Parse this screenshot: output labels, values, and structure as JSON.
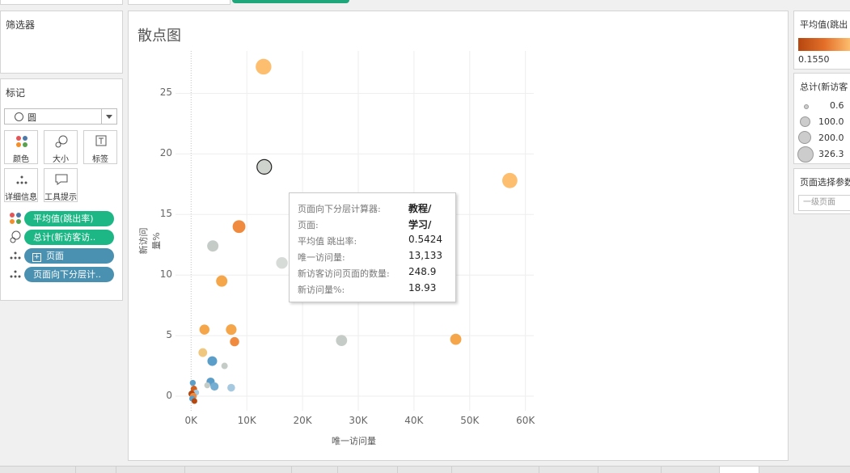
{
  "filters": {
    "title": "筛选器"
  },
  "marks": {
    "title": "标记",
    "mark_type": "圆",
    "buttons": {
      "color": "颜色",
      "size": "大小",
      "label": "标签",
      "detail": "详细信息",
      "tooltip": "工具提示"
    },
    "pills": [
      "平均值(跳出率)",
      "总计(新访客访..",
      "页面",
      "页面向下分层计.."
    ]
  },
  "chart": {
    "title": "散点图"
  },
  "chart_data": {
    "type": "scatter",
    "title": "散点图",
    "xlabel": "唯一访问量",
    "ylabel": "新访问量%",
    "xlim": [
      -2800,
      61500
    ],
    "ylim": [
      -1.2,
      28.5
    ],
    "xticks": [
      "0K",
      "10K",
      "20K",
      "30K",
      "40K",
      "50K",
      "60K"
    ],
    "xtick_values": [
      0,
      10000,
      20000,
      30000,
      40000,
      50000,
      60000
    ],
    "yticks": [
      "0",
      "5",
      "10",
      "15",
      "20",
      "25"
    ],
    "ytick_values": [
      0,
      5,
      10,
      15,
      20,
      25
    ],
    "grid": true,
    "points": [
      {
        "x": 13000,
        "y": 27.2,
        "size": 300,
        "color": "#fdbf6f"
      },
      {
        "x": 57200,
        "y": 17.8,
        "size": 280,
        "color": "#fdbf6f"
      },
      {
        "x": 13133,
        "y": 18.93,
        "size": 248.9,
        "color": "#cfd3ce",
        "selected": true
      },
      {
        "x": 8600,
        "y": 14.0,
        "size": 180,
        "color": "#ef8a3e"
      },
      {
        "x": 3900,
        "y": 12.4,
        "size": 130,
        "color": "#c5ccc8"
      },
      {
        "x": 16300,
        "y": 11.0,
        "size": 140,
        "color": "#d7dbd8"
      },
      {
        "x": 5500,
        "y": 9.5,
        "size": 130,
        "color": "#f5a64a"
      },
      {
        "x": 2400,
        "y": 5.5,
        "size": 90,
        "color": "#f5a64a"
      },
      {
        "x": 7200,
        "y": 5.5,
        "size": 110,
        "color": "#f5a64a"
      },
      {
        "x": 7800,
        "y": 4.5,
        "size": 70,
        "color": "#ef8a3e"
      },
      {
        "x": 27000,
        "y": 4.6,
        "size": 120,
        "color": "#c5ccc8"
      },
      {
        "x": 47500,
        "y": 4.7,
        "size": 120,
        "color": "#f5a64a"
      },
      {
        "x": 2100,
        "y": 3.6,
        "size": 60,
        "color": "#f0c77f"
      },
      {
        "x": 3800,
        "y": 2.9,
        "size": 80,
        "color": "#5b9ec9"
      },
      {
        "x": 6000,
        "y": 2.5,
        "size": 20,
        "color": "#c5ccc8"
      },
      {
        "x": 3500,
        "y": 1.2,
        "size": 50,
        "color": "#5b9ec9"
      },
      {
        "x": 4200,
        "y": 0.8,
        "size": 50,
        "color": "#76aed3"
      },
      {
        "x": 7200,
        "y": 0.7,
        "size": 40,
        "color": "#a6c9e0"
      },
      {
        "x": 2900,
        "y": 0.9,
        "size": 15,
        "color": "#c5ccc8"
      },
      {
        "x": 300,
        "y": 1.1,
        "size": 15,
        "color": "#5b9ec9"
      },
      {
        "x": 500,
        "y": 0.6,
        "size": 20,
        "color": "#d06020"
      },
      {
        "x": 900,
        "y": 0.3,
        "size": 15,
        "color": "#a6c9e0"
      },
      {
        "x": 100,
        "y": 0.2,
        "size": 20,
        "color": "#b5470f"
      },
      {
        "x": 400,
        "y": 0.0,
        "size": 25,
        "color": "#ef8a3e"
      },
      {
        "x": 200,
        "y": -0.2,
        "size": 15,
        "color": "#5b9ec9"
      },
      {
        "x": 600,
        "y": -0.4,
        "size": 12,
        "color": "#b5470f"
      }
    ]
  },
  "tooltip": {
    "rows": [
      {
        "label": "页面向下分层计算器:",
        "value": "教程/"
      },
      {
        "label": "页面:",
        "value": "学习/"
      },
      {
        "label": "平均值 跳出率:",
        "value": "0.5424"
      },
      {
        "label": "唯一访问量:",
        "value": "13,133"
      },
      {
        "label": "新访客访问页面的数量:",
        "value": "248.9"
      },
      {
        "label": "新访问量%:",
        "value": "18.93"
      }
    ]
  },
  "legend_color": {
    "title": "平均值(跳出",
    "min_label": "0.1550",
    "colors": [
      "#b5470f",
      "#e46f2a",
      "#fdbf6f"
    ]
  },
  "legend_size": {
    "title": "总计(新访客",
    "items": [
      "0.6",
      "100.0",
      "200.0",
      "326.3"
    ]
  },
  "param": {
    "title": "页面选择参数",
    "value": "一级页面"
  }
}
